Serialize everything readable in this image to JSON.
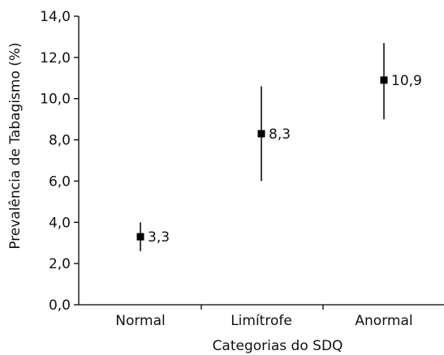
{
  "chart_data": {
    "type": "scatter",
    "title": "",
    "xlabel": "Categorias do SDQ",
    "ylabel": "Prevalência de Tabagismo (%)",
    "categories": [
      "Normal",
      "Limítrofe",
      "Anormal"
    ],
    "values": [
      3.3,
      8.3,
      10.9
    ],
    "value_labels": [
      "3,3",
      "8,3",
      "10,9"
    ],
    "error_low": [
      2.6,
      6.0,
      9.0
    ],
    "error_high": [
      4.0,
      10.6,
      12.7
    ],
    "ylim": [
      0,
      14
    ],
    "yticks": [
      0,
      2,
      4,
      6,
      8,
      10,
      12,
      14
    ],
    "ytick_labels": [
      "0,0",
      "2,0",
      "4,0",
      "6,0",
      "8,0",
      "10,0",
      "12,0",
      "14,0"
    ],
    "grid": false,
    "marker": "square",
    "color": "#000000"
  }
}
